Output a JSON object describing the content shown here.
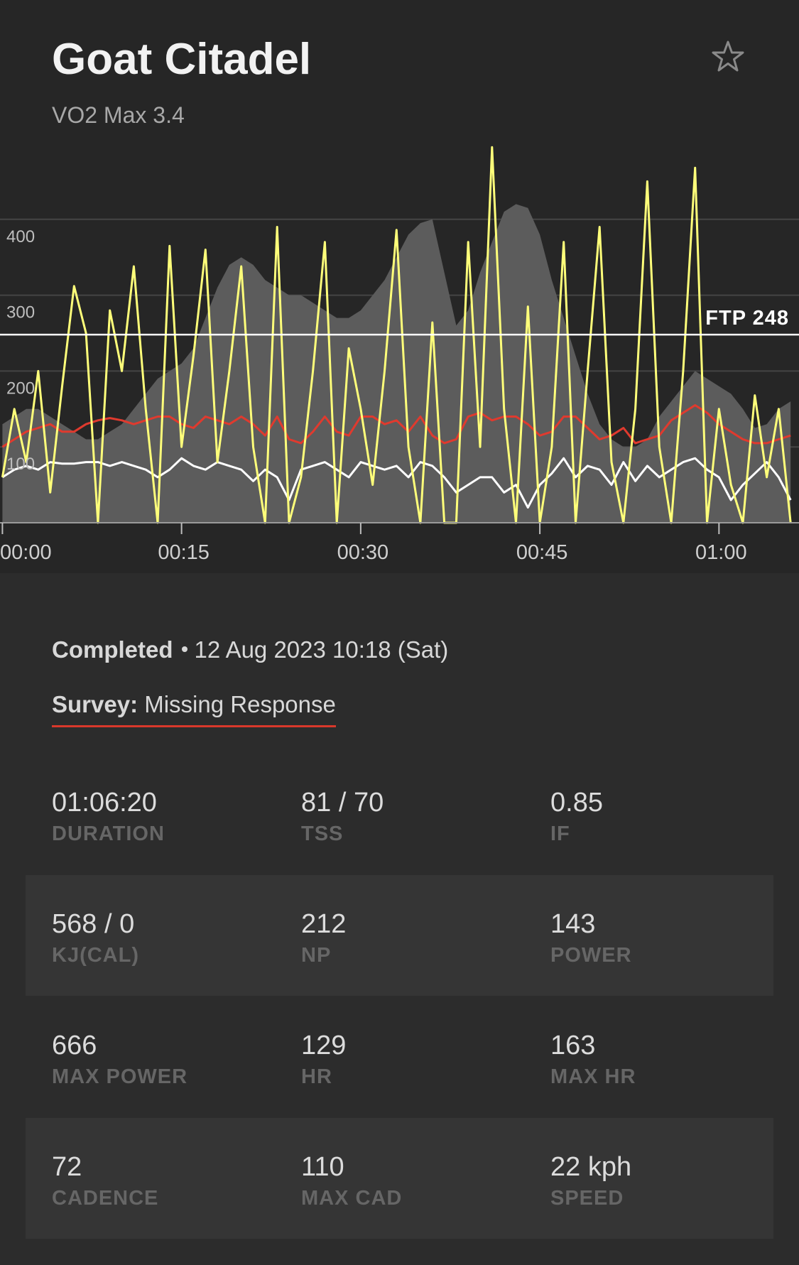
{
  "header": {
    "title": "Goat Citadel",
    "subtitle": "VO2 Max 3.4"
  },
  "chart_data": {
    "type": "line",
    "x": [
      0,
      1,
      2,
      3,
      4,
      5,
      6,
      7,
      8,
      9,
      10,
      11,
      12,
      13,
      14,
      15,
      16,
      17,
      18,
      19,
      20,
      21,
      22,
      23,
      24,
      25,
      26,
      27,
      28,
      29,
      30,
      31,
      32,
      33,
      34,
      35,
      36,
      37,
      38,
      39,
      40,
      41,
      42,
      43,
      44,
      45,
      46,
      47,
      48,
      49,
      50,
      51,
      52,
      53,
      54,
      55,
      56,
      57,
      58,
      59,
      60,
      61,
      62,
      63,
      64,
      65,
      66
    ],
    "xlim": [
      0,
      66.7
    ],
    "xticks": [
      {
        "value": 0,
        "label": "00:00"
      },
      {
        "value": 15,
        "label": "00:15"
      },
      {
        "value": 30,
        "label": "00:30"
      },
      {
        "value": 45,
        "label": "00:45"
      },
      {
        "value": 60,
        "label": "01:00"
      }
    ],
    "ylim": [
      0,
      500
    ],
    "yticks": [
      100,
      200,
      300,
      400
    ],
    "grid": true,
    "ftp": {
      "value": 248,
      "label": "FTP 248"
    },
    "series": [
      {
        "color": "#5c5c5c",
        "style": "area",
        "values": [
          130,
          140,
          150,
          150,
          140,
          130,
          120,
          110,
          110,
          120,
          130,
          150,
          170,
          190,
          200,
          210,
          230,
          270,
          310,
          340,
          350,
          340,
          320,
          310,
          300,
          300,
          290,
          280,
          270,
          270,
          280,
          300,
          320,
          350,
          380,
          395,
          400,
          330,
          260,
          280,
          330,
          370,
          410,
          420,
          415,
          380,
          320,
          270,
          220,
          170,
          130,
          110,
          100,
          100,
          110,
          140,
          160,
          180,
          200,
          190,
          180,
          170,
          150,
          125,
          130,
          150,
          160
        ]
      },
      {
        "color": "#e03a2e",
        "values": [
          100,
          110,
          120,
          125,
          130,
          120,
          120,
          130,
          135,
          138,
          135,
          130,
          135,
          140,
          140,
          130,
          125,
          140,
          135,
          130,
          140,
          130,
          115,
          140,
          110,
          105,
          120,
          140,
          120,
          115,
          140,
          140,
          130,
          135,
          120,
          140,
          115,
          105,
          110,
          140,
          145,
          135,
          140,
          140,
          130,
          115,
          120,
          140,
          140,
          125,
          110,
          115,
          125,
          105,
          110,
          115,
          135,
          145,
          155,
          145,
          130,
          120,
          110,
          105,
          105,
          110,
          115
        ]
      },
      {
        "color": "#ffffff",
        "values": [
          60,
          70,
          75,
          70,
          80,
          78,
          78,
          80,
          80,
          75,
          80,
          75,
          70,
          60,
          70,
          85,
          75,
          70,
          80,
          75,
          70,
          55,
          70,
          60,
          30,
          70,
          75,
          80,
          70,
          60,
          80,
          75,
          70,
          75,
          60,
          80,
          75,
          60,
          40,
          50,
          60,
          60,
          40,
          50,
          20,
          50,
          65,
          85,
          60,
          75,
          70,
          50,
          80,
          55,
          75,
          60,
          70,
          80,
          85,
          70,
          60,
          30,
          50,
          65,
          80,
          60,
          30
        ]
      },
      {
        "color": "#ffff7a",
        "values": [
          60,
          150,
          80,
          200,
          40,
          180,
          312,
          250,
          0,
          280,
          200,
          338,
          150,
          0,
          365,
          100,
          220,
          360,
          80,
          200,
          338,
          100,
          0,
          390,
          0,
          60,
          200,
          370,
          0,
          230,
          150,
          50,
          200,
          386,
          100,
          0,
          264,
          0,
          0,
          370,
          100,
          495,
          150,
          0,
          285,
          0,
          100,
          370,
          0,
          200,
          390,
          80,
          0,
          150,
          450,
          100,
          0,
          200,
          468,
          0,
          150,
          50,
          0,
          168,
          60,
          150,
          0
        ]
      }
    ]
  },
  "status": {
    "state": "Completed",
    "date": "12 Aug 2023 10:18 (Sat)"
  },
  "survey": {
    "label": "Survey:",
    "value": "Missing Response"
  },
  "stats": [
    [
      {
        "value": "01:06:20",
        "label": "DURATION"
      },
      {
        "value": "81 / 70",
        "label": "TSS"
      },
      {
        "value": "0.85",
        "label": "IF"
      }
    ],
    [
      {
        "value": "568 / 0",
        "label": "KJ(CAL)"
      },
      {
        "value": "212",
        "label": "NP"
      },
      {
        "value": "143",
        "label": "POWER"
      }
    ],
    [
      {
        "value": "666",
        "label": "MAX POWER"
      },
      {
        "value": "129",
        "label": "HR"
      },
      {
        "value": "163",
        "label": "MAX HR"
      }
    ],
    [
      {
        "value": "72",
        "label": "CADENCE"
      },
      {
        "value": "110",
        "label": "MAX CAD"
      },
      {
        "value": "22 kph",
        "label": "SPEED"
      }
    ]
  ]
}
